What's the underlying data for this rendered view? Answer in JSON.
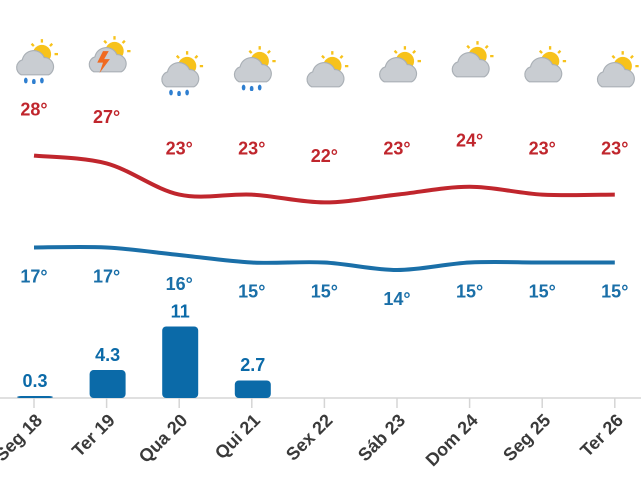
{
  "chart_data": [
    {
      "type": "line",
      "values": [
        28,
        27,
        23,
        23,
        22,
        23,
        24,
        23,
        23
      ],
      "value_labels": [
        "28°",
        "27°",
        "23°",
        "23°",
        "22°",
        "23°",
        "24°",
        "23°",
        "23°"
      ],
      "color": "#c0262d",
      "ylim": [
        20,
        30
      ]
    },
    {
      "type": "line",
      "values": [
        17,
        17,
        16,
        15,
        15,
        14,
        15,
        15,
        15
      ],
      "value_labels": [
        "17°",
        "17°",
        "16°",
        "15°",
        "15°",
        "14°",
        "15°",
        "15°",
        "15°"
      ],
      "color": "#1a6fa8",
      "ylim": [
        10,
        20
      ]
    },
    {
      "type": "bar",
      "categories": [
        "Seg 18",
        "Ter 19",
        "Qua 20",
        "Qui 21",
        "Sex 22",
        "Sáb 23",
        "Dom 24",
        "Seg 25",
        "Ter 26"
      ],
      "values": [
        0.3,
        4.3,
        11,
        2.7,
        null,
        null,
        null,
        null,
        null
      ],
      "color": "#0b6aa8",
      "ylim": [
        0,
        12
      ]
    }
  ]
}
